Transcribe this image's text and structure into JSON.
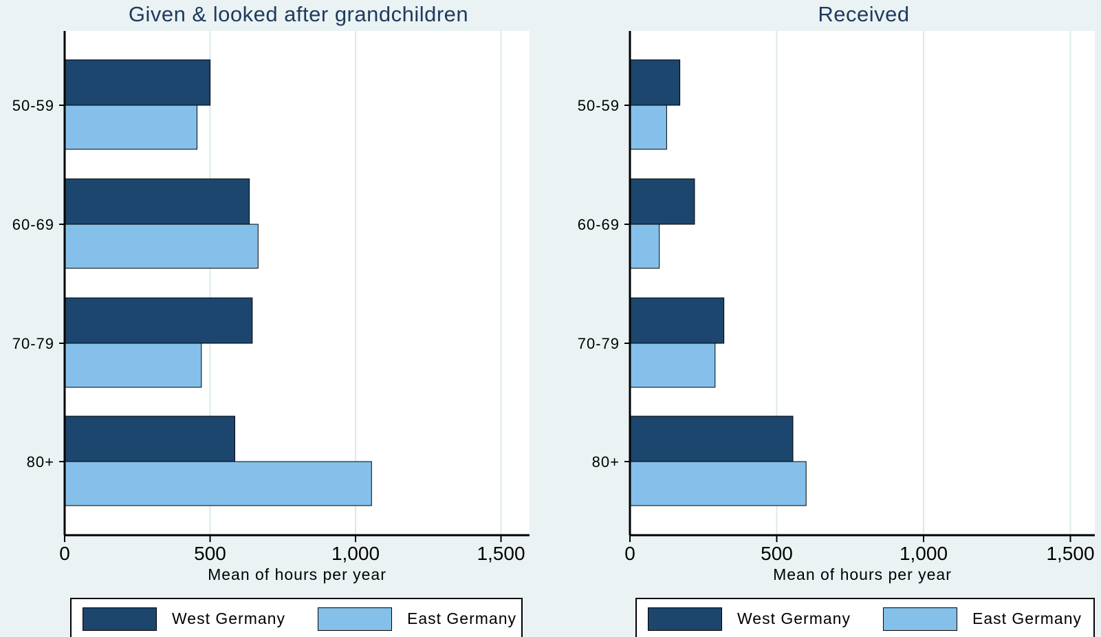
{
  "colors": {
    "background": "#eaf2f3",
    "plot_background": "#ffffff",
    "grid": "#dde9ea",
    "west": "#1d466e",
    "east": "#85c0ea"
  },
  "legend": {
    "items": [
      "West Germany",
      "East Germany"
    ]
  },
  "chart_data": [
    {
      "type": "bar",
      "orientation": "horizontal",
      "title": "Given & looked after grandchildren",
      "xlabel": "Mean of hours per year",
      "ylabel": "",
      "categories": [
        "50-59",
        "60-69",
        "70-79",
        "80+"
      ],
      "series": [
        {
          "name": "West Germany",
          "values": [
            500,
            635,
            645,
            585
          ]
        },
        {
          "name": "East Germany",
          "values": [
            455,
            665,
            470,
            1055
          ]
        }
      ],
      "xlim": [
        0,
        1575
      ],
      "xticks": [
        0,
        500,
        1000,
        1500
      ],
      "xtick_labels": [
        "0",
        "500",
        "1,000",
        "1,500"
      ],
      "grid": true,
      "legend_position": "bottom"
    },
    {
      "type": "bar",
      "orientation": "horizontal",
      "title": "Received",
      "xlabel": "Mean of hours per year",
      "ylabel": "",
      "categories": [
        "50-59",
        "60-69",
        "70-79",
        "80+"
      ],
      "series": [
        {
          "name": "West Germany",
          "values": [
            170,
            220,
            320,
            555
          ]
        },
        {
          "name": "East Germany",
          "values": [
            125,
            100,
            290,
            600
          ]
        }
      ],
      "xlim": [
        0,
        1575
      ],
      "xticks": [
        0,
        500,
        1000,
        1500
      ],
      "xtick_labels": [
        "0",
        "500",
        "1,000",
        "1,500"
      ],
      "grid": true,
      "legend_position": "bottom"
    }
  ]
}
